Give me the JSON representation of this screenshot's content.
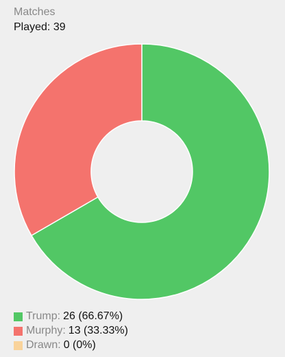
{
  "chart_data": {
    "type": "pie",
    "donut": true,
    "title": "Matches",
    "subtitle": "Played: 39",
    "categories": [
      "Trump:",
      "Murphy:",
      "Drawn:"
    ],
    "values": [
      26,
      13,
      0
    ],
    "value_labels": [
      "26 (66.67%)",
      "13 (33.33%)",
      "0 (0%)"
    ],
    "colors": [
      "#52c765",
      "#f4736d",
      "#f9d39b"
    ]
  }
}
